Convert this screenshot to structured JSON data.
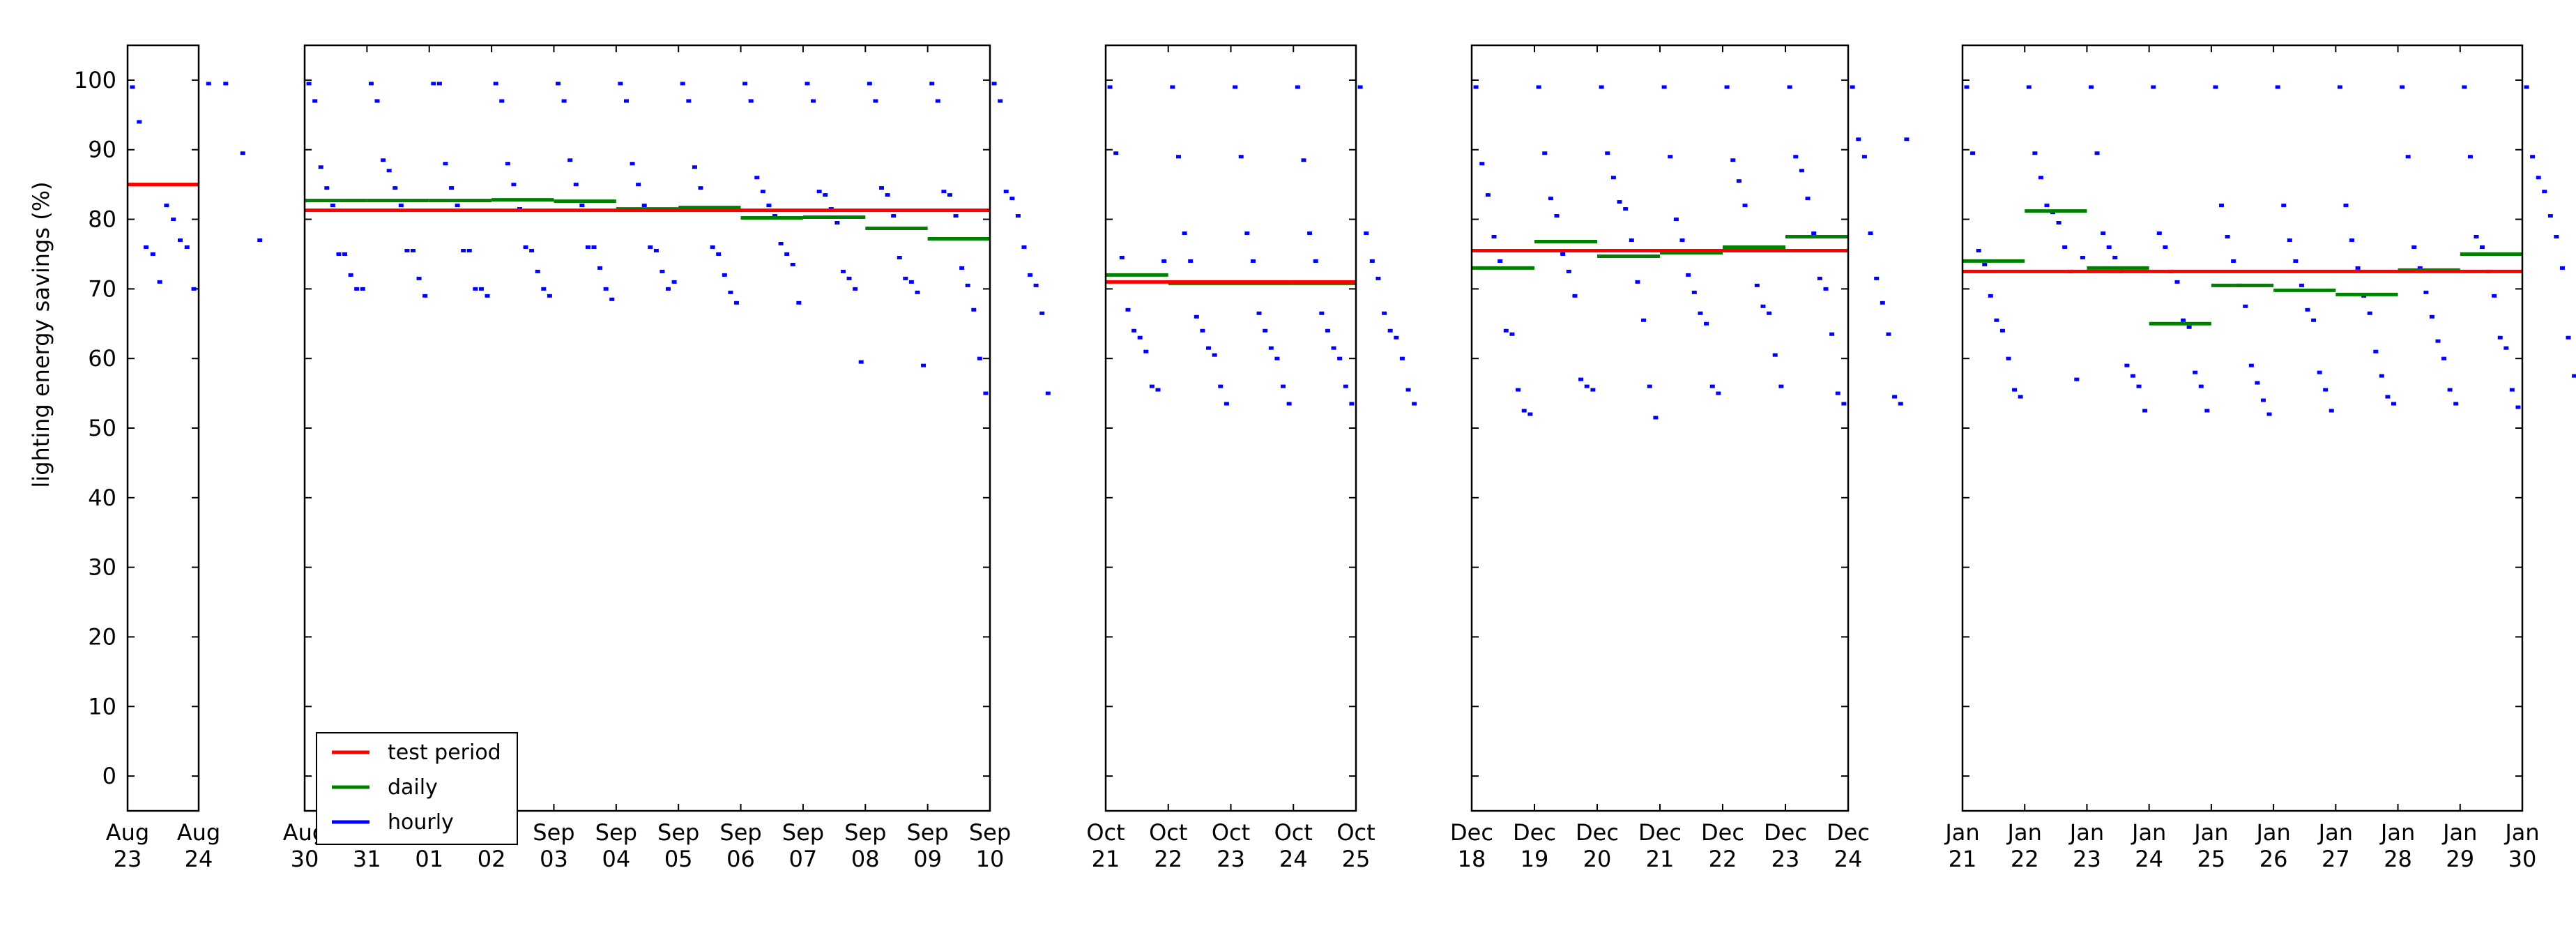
{
  "chart_data": {
    "type": "scatter",
    "ylabel": "lighting energy savings (%)",
    "ylim": [
      -5,
      105
    ],
    "yticks": [
      0,
      10,
      20,
      30,
      40,
      50,
      60,
      70,
      80,
      90,
      100
    ],
    "legend": {
      "placement": "lower-left of second panel",
      "entries": [
        {
          "label": "test period",
          "color": "#ff0000"
        },
        {
          "label": "daily",
          "color": "#008000"
        },
        {
          "label": "hourly",
          "color": "#0000ff"
        }
      ]
    },
    "panels": [
      {
        "xticks": [
          [
            "Aug",
            "23"
          ],
          [
            "Aug",
            "24"
          ]
        ],
        "test_period": 85,
        "daily": [
          85
        ],
        "hourly": [
          [
            99,
            94,
            76,
            75,
            71,
            82,
            80,
            77,
            76,
            70
          ],
          [
            99.5,
            99.5,
            89.5,
            77
          ]
        ]
      },
      {
        "xticks": [
          [
            "Aug",
            "30"
          ],
          [
            "Aug",
            "31"
          ],
          [
            "Sep",
            "01"
          ],
          [
            "Sep",
            "02"
          ],
          [
            "Sep",
            "03"
          ],
          [
            "Sep",
            "04"
          ],
          [
            "Sep",
            "05"
          ],
          [
            "Sep",
            "06"
          ],
          [
            "Sep",
            "07"
          ],
          [
            "Sep",
            "08"
          ],
          [
            "Sep",
            "09"
          ],
          [
            "Sep",
            "10"
          ]
        ],
        "test_period": 81.3,
        "daily": [
          82.7,
          82.7,
          82.7,
          82.8,
          82.6,
          81.5,
          81.7,
          80.2,
          80.3,
          78.7,
          77.2
        ],
        "hourly": [
          [
            99.5,
            97,
            87.5,
            84.5,
            82,
            75,
            75,
            72,
            70,
            70
          ],
          [
            99.5,
            97,
            88.5,
            87,
            84.5,
            82,
            75.5,
            75.5,
            71.5,
            69
          ],
          [
            99.5,
            99.5,
            88,
            84.5,
            82,
            75.5,
            75.5,
            70,
            70,
            69
          ],
          [
            99.5,
            97,
            88,
            85,
            81.5,
            76,
            75.5,
            72.5,
            70,
            69
          ],
          [
            99.5,
            97,
            88.5,
            85,
            82,
            76,
            76,
            73,
            70,
            68.5
          ],
          [
            99.5,
            97,
            88,
            85,
            82,
            76,
            75.5,
            72.5,
            70,
            71
          ],
          [
            99.5,
            97,
            87.5,
            84.5,
            81.5,
            76,
            75,
            72,
            69.5,
            68
          ],
          [
            99.5,
            97,
            86,
            84,
            82,
            80.5,
            76.5,
            75,
            73.5,
            68
          ],
          [
            99.5,
            97,
            84,
            83.5,
            81.5,
            79.5,
            72.5,
            71.5,
            70,
            59.5
          ],
          [
            99.5,
            97,
            84.5,
            83.5,
            80.5,
            74.5,
            71.5,
            71,
            69.5,
            59
          ],
          [
            99.5,
            97,
            84,
            83.5,
            80.5,
            73,
            70.5,
            67,
            60,
            55
          ],
          [
            99.5,
            97,
            84,
            83,
            80.5,
            76,
            72,
            70.5,
            66.5,
            55
          ]
        ]
      },
      {
        "xticks": [
          [
            "Oct",
            "21"
          ],
          [
            "Oct",
            "22"
          ],
          [
            "Oct",
            "23"
          ],
          [
            "Oct",
            "24"
          ],
          [
            "Oct",
            "25"
          ]
        ],
        "test_period": 71,
        "daily": [
          72,
          70.8,
          70.8,
          70.8
        ],
        "hourly": [
          [
            99,
            89.5,
            74.5,
            67,
            64,
            63,
            61,
            56,
            55.5,
            74
          ],
          [
            99,
            89,
            78,
            74,
            66,
            64,
            61.5,
            60.5,
            56,
            53.5
          ],
          [
            99,
            89,
            78,
            74,
            66.5,
            64,
            61.5,
            60,
            56,
            53.5
          ],
          [
            99,
            88.5,
            78,
            74,
            66.5,
            64,
            61.5,
            60,
            56,
            53.5
          ],
          [
            99,
            78,
            74,
            71.5,
            66.5,
            64,
            63,
            60,
            55.5,
            53.5
          ]
        ]
      },
      {
        "xticks": [
          [
            "Dec",
            "18"
          ],
          [
            "Dec",
            "19"
          ],
          [
            "Dec",
            "20"
          ],
          [
            "Dec",
            "21"
          ],
          [
            "Dec",
            "22"
          ],
          [
            "Dec",
            "23"
          ],
          [
            "Dec",
            "24"
          ]
        ],
        "test_period": 75.5,
        "daily": [
          73,
          76.8,
          74.7,
          75.2,
          76,
          77.5
        ],
        "hourly": [
          [
            99,
            88,
            83.5,
            77.5,
            74,
            64,
            63.5,
            55.5,
            52.5,
            52
          ],
          [
            99,
            89.5,
            83,
            80.5,
            75,
            72.5,
            69,
            57,
            56,
            55.5
          ],
          [
            99,
            89.5,
            86,
            82.5,
            81.5,
            77,
            71,
            65.5,
            56,
            51.5
          ],
          [
            99,
            89,
            80,
            77,
            72,
            69.5,
            66.5,
            65,
            56,
            55
          ],
          [
            99,
            88.5,
            85.5,
            82,
            76,
            70.5,
            67.5,
            66.5,
            60.5,
            56
          ],
          [
            99,
            89,
            87,
            83,
            78,
            71.5,
            70,
            63.5,
            55,
            53.5
          ],
          [
            99,
            91.5,
            89,
            78,
            71.5,
            68,
            63.5,
            54.5,
            53.5,
            91.5
          ]
        ]
      },
      {
        "xticks": [
          [
            "Jan",
            "21"
          ],
          [
            "Jan",
            "22"
          ],
          [
            "Jan",
            "23"
          ],
          [
            "Jan",
            "24"
          ],
          [
            "Jan",
            "25"
          ],
          [
            "Jan",
            "26"
          ],
          [
            "Jan",
            "27"
          ],
          [
            "Jan",
            "28"
          ],
          [
            "Jan",
            "29"
          ],
          [
            "Jan",
            "30"
          ]
        ],
        "test_period": 72.5,
        "daily": [
          74,
          81.2,
          73,
          65,
          70.5,
          69.8,
          69.2,
          72.7,
          75
        ],
        "hourly": [
          [
            99,
            89.5,
            75.5,
            73.5,
            69,
            65.5,
            64,
            60,
            55.5,
            54.5
          ],
          [
            99,
            89.5,
            86,
            82,
            81,
            79.5,
            76,
            72.5,
            57,
            74.5
          ],
          [
            99,
            89.5,
            78,
            76,
            74.5,
            72.5,
            59,
            57.5,
            56,
            52.5
          ],
          [
            99,
            78,
            76,
            72.5,
            71,
            65.5,
            64.5,
            58,
            56,
            52.5
          ],
          [
            99,
            82,
            77.5,
            74,
            70.5,
            67.5,
            59,
            56.5,
            54,
            52
          ],
          [
            99,
            82,
            77,
            74,
            70.5,
            67,
            65.5,
            58,
            55.5,
            52.5
          ],
          [
            99,
            82,
            77,
            73,
            69,
            66.5,
            61,
            57.5,
            54.5,
            53.5
          ],
          [
            99,
            89,
            76,
            73,
            69.5,
            66,
            62.5,
            60,
            55.5,
            53.5
          ],
          [
            99,
            89,
            77.5,
            76,
            72.5,
            69,
            63,
            61.5,
            55.5,
            53
          ],
          [
            99,
            89,
            86,
            84,
            80.5,
            77.5,
            73,
            63,
            57.5,
            52
          ]
        ]
      }
    ]
  }
}
